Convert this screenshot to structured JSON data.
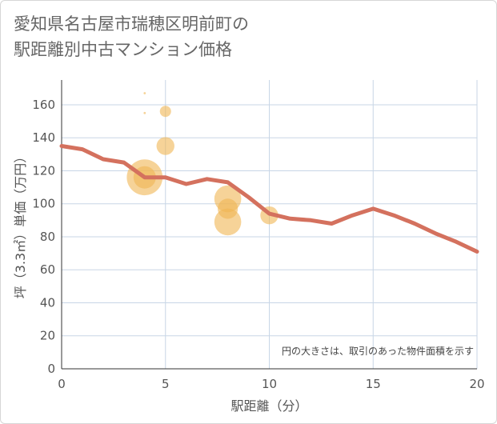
{
  "page": {
    "title": "愛知県名古屋市瑞穂区明前町の\n駅距離別中古マンション価格"
  },
  "chart_data": {
    "type": "line+scatter",
    "title": "愛知県名古屋市瑞穂区明前町の駅距離別中古マンション価格",
    "xlabel": "駅距離（分）",
    "ylabel": "坪（3.3㎡）単価（万円）",
    "xlim": [
      0,
      20
    ],
    "ylim": [
      0,
      175
    ],
    "xticks": [
      0,
      5,
      10,
      15,
      20
    ],
    "yticks": [
      0,
      20,
      40,
      60,
      80,
      100,
      120,
      140,
      160
    ],
    "grid": true,
    "note": "円の大きさは、取引のあった物件面積を示す",
    "colors": {
      "line": "#d4715e",
      "bubble": "#f0b553",
      "grid": "#c8d6e6",
      "axis": "#333333"
    },
    "line": {
      "x": [
        0,
        1,
        2,
        3,
        4,
        5,
        6,
        7,
        8,
        9,
        10,
        11,
        12,
        13,
        14,
        15,
        16,
        17,
        18,
        19,
        20
      ],
      "y": [
        135,
        133,
        127,
        125,
        116,
        116,
        112,
        115,
        113,
        104,
        94,
        91,
        90,
        88,
        93,
        97,
        93,
        88,
        82,
        77,
        71
      ]
    },
    "bubbles": [
      {
        "x": 4,
        "y": 167,
        "size": 1
      },
      {
        "x": 4,
        "y": 155,
        "size": 1
      },
      {
        "x": 5,
        "y": 156,
        "size": 5
      },
      {
        "x": 5,
        "y": 135,
        "size": 8
      },
      {
        "x": 4,
        "y": 116,
        "size": 16
      },
      {
        "x": 4,
        "y": 116,
        "size": 10
      },
      {
        "x": 8,
        "y": 103,
        "size": 12
      },
      {
        "x": 8,
        "y": 97,
        "size": 9
      },
      {
        "x": 8,
        "y": 89,
        "size": 12
      },
      {
        "x": 10,
        "y": 93,
        "size": 8
      }
    ]
  }
}
